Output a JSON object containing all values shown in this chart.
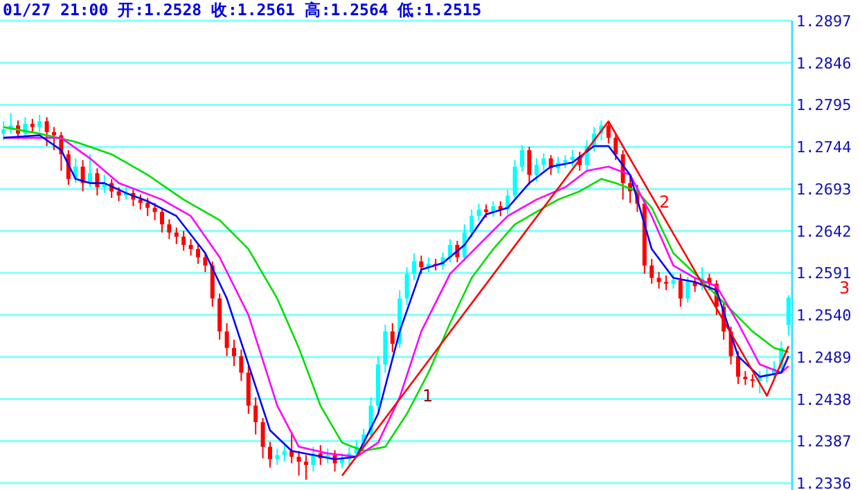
{
  "chart_data": {
    "type": "candlestick",
    "title": "01/27  21:00  开:1.2528  收:1.2561  高:1.2564  低:1.2515",
    "categories": [
      null,
      null,
      null,
      null,
      null,
      null,
      null,
      null,
      null,
      null,
      null,
      null,
      null,
      null,
      null,
      null,
      null,
      null,
      null,
      null,
      null,
      null,
      null,
      null,
      null,
      null,
      null,
      null,
      null,
      null,
      null,
      null,
      null,
      null,
      null,
      null,
      null,
      null,
      null,
      null,
      null,
      null,
      null,
      null,
      null,
      null,
      null,
      null,
      null,
      null,
      null,
      null,
      null,
      null,
      null,
      null,
      null,
      null,
      null,
      null,
      null,
      null,
      null,
      null,
      null,
      null,
      null,
      null,
      null,
      null,
      null,
      null,
      null,
      null,
      null,
      null,
      null,
      null,
      null,
      null,
      null,
      null,
      null,
      null,
      null,
      null,
      null,
      null,
      null,
      null,
      null,
      null,
      null,
      null,
      null,
      null,
      null,
      null,
      null,
      null,
      null,
      null,
      null,
      null,
      null,
      null,
      null,
      null,
      null,
      null
    ],
    "ohlc": [
      [
        1.276,
        1.2775,
        1.2752,
        1.2765
      ],
      [
        1.2765,
        1.2785,
        1.276,
        1.277
      ],
      [
        1.277,
        1.2776,
        1.2754,
        1.276
      ],
      [
        1.276,
        1.278,
        1.2755,
        1.2772
      ],
      [
        1.2772,
        1.2778,
        1.2762,
        1.2768
      ],
      [
        1.2768,
        1.2783,
        1.2762,
        1.2775
      ],
      [
        1.2775,
        1.278,
        1.2745,
        1.2762
      ],
      [
        1.2762,
        1.2768,
        1.274,
        1.2758
      ],
      [
        1.2758,
        1.2762,
        1.2715,
        1.2735
      ],
      [
        1.2735,
        1.274,
        1.2698,
        1.2705
      ],
      [
        1.2705,
        1.273,
        1.27,
        1.272
      ],
      [
        1.272,
        1.2728,
        1.269,
        1.27
      ],
      [
        1.27,
        1.2735,
        1.2695,
        1.2712
      ],
      [
        1.2712,
        1.2718,
        1.2685,
        1.2695
      ],
      [
        1.2695,
        1.271,
        1.2688,
        1.27
      ],
      [
        1.27,
        1.2705,
        1.2682,
        1.269
      ],
      [
        1.269,
        1.2695,
        1.2678,
        1.2685
      ],
      [
        1.2685,
        1.2695,
        1.268,
        1.2688
      ],
      [
        1.2688,
        1.2692,
        1.2672,
        1.268
      ],
      [
        1.268,
        1.2686,
        1.2668,
        1.2676
      ],
      [
        1.2676,
        1.2682,
        1.266,
        1.267
      ],
      [
        1.267,
        1.2676,
        1.2655,
        1.2665
      ],
      [
        1.2665,
        1.267,
        1.264,
        1.265
      ],
      [
        1.265,
        1.2656,
        1.2632,
        1.264
      ],
      [
        1.264,
        1.2646,
        1.2626,
        1.2635
      ],
      [
        1.2635,
        1.2642,
        1.2618,
        1.2625
      ],
      [
        1.2625,
        1.2632,
        1.2612,
        1.262
      ],
      [
        1.262,
        1.2626,
        1.2602,
        1.261
      ],
      [
        1.261,
        1.2616,
        1.2592,
        1.26
      ],
      [
        1.26,
        1.2605,
        1.255,
        1.256
      ],
      [
        1.256,
        1.2566,
        1.251,
        1.252
      ],
      [
        1.252,
        1.253,
        1.249,
        1.25
      ],
      [
        1.25,
        1.251,
        1.2478,
        1.249
      ],
      [
        1.249,
        1.2498,
        1.246,
        1.247
      ],
      [
        1.247,
        1.2478,
        1.242,
        1.243
      ],
      [
        1.243,
        1.244,
        1.2395,
        1.241
      ],
      [
        1.241,
        1.2415,
        1.2366,
        1.238
      ],
      [
        1.238,
        1.2386,
        1.2355,
        1.2365
      ],
      [
        1.2365,
        1.2378,
        1.2358,
        1.237
      ],
      [
        1.237,
        1.2382,
        1.2362,
        1.2375
      ],
      [
        1.2375,
        1.2398,
        1.236,
        1.2368
      ],
      [
        1.2368,
        1.2375,
        1.2345,
        1.2362
      ],
      [
        1.2362,
        1.237,
        1.234,
        1.2358
      ],
      [
        1.2358,
        1.238,
        1.235,
        1.2372
      ],
      [
        1.2372,
        1.2382,
        1.2358,
        1.2366
      ],
      [
        1.2366,
        1.2378,
        1.236,
        1.237
      ],
      [
        1.237,
        1.2376,
        1.235,
        1.236
      ],
      [
        1.236,
        1.2372,
        1.2354,
        1.2365
      ],
      [
        1.2365,
        1.238,
        1.2358,
        1.2372
      ],
      [
        1.2372,
        1.2388,
        1.2366,
        1.238
      ],
      [
        1.238,
        1.2402,
        1.2374,
        1.2395
      ],
      [
        1.2395,
        1.244,
        1.239,
        1.243
      ],
      [
        1.243,
        1.249,
        1.2425,
        1.248
      ],
      [
        1.248,
        1.2528,
        1.247,
        1.252
      ],
      [
        1.252,
        1.253,
        1.2495,
        1.2505
      ],
      [
        1.2505,
        1.257,
        1.25,
        1.256
      ],
      [
        1.256,
        1.2598,
        1.2552,
        1.259
      ],
      [
        1.259,
        1.2615,
        1.2582,
        1.2605
      ],
      [
        1.2605,
        1.2612,
        1.259,
        1.2598
      ],
      [
        1.2598,
        1.261,
        1.2592,
        1.2602
      ],
      [
        1.2602,
        1.2608,
        1.2594,
        1.26
      ],
      [
        1.26,
        1.2616,
        1.2595,
        1.261
      ],
      [
        1.261,
        1.2632,
        1.2604,
        1.2625
      ],
      [
        1.2625,
        1.263,
        1.2604,
        1.261
      ],
      [
        1.261,
        1.265,
        1.2605,
        1.264
      ],
      [
        1.264,
        1.2668,
        1.2634,
        1.266
      ],
      [
        1.266,
        1.2675,
        1.2654,
        1.2668
      ],
      [
        1.2668,
        1.2674,
        1.2658,
        1.2665
      ],
      [
        1.2665,
        1.2678,
        1.2659,
        1.2672
      ],
      [
        1.2672,
        1.2678,
        1.266,
        1.2668
      ],
      [
        1.2668,
        1.2692,
        1.2662,
        1.2685
      ],
      [
        1.2685,
        1.2728,
        1.268,
        1.272
      ],
      [
        1.272,
        1.2746,
        1.2714,
        1.274
      ],
      [
        1.274,
        1.2744,
        1.2698,
        1.271
      ],
      [
        1.271,
        1.273,
        1.2702,
        1.2722
      ],
      [
        1.2722,
        1.2736,
        1.2715,
        1.273
      ],
      [
        1.273,
        1.2734,
        1.271,
        1.2718
      ],
      [
        1.2718,
        1.2732,
        1.2712,
        1.2725
      ],
      [
        1.2725,
        1.2734,
        1.2718,
        1.2728
      ],
      [
        1.2728,
        1.274,
        1.272,
        1.2732
      ],
      [
        1.2732,
        1.2738,
        1.2715,
        1.2722
      ],
      [
        1.2722,
        1.2752,
        1.2716,
        1.2745
      ],
      [
        1.2745,
        1.2768,
        1.2738,
        1.276
      ],
      [
        1.276,
        1.2776,
        1.2752,
        1.277
      ],
      [
        1.277,
        1.2775,
        1.2748,
        1.2755
      ],
      [
        1.2755,
        1.276,
        1.2728,
        1.2735
      ],
      [
        1.2735,
        1.274,
        1.268,
        1.27
      ],
      [
        1.27,
        1.271,
        1.2676,
        1.269
      ],
      [
        1.269,
        1.2698,
        1.2665,
        1.2675
      ],
      [
        1.2675,
        1.268,
        1.259,
        1.26
      ],
      [
        1.26,
        1.2608,
        1.2578,
        1.2585
      ],
      [
        1.2585,
        1.2592,
        1.2572,
        1.258
      ],
      [
        1.258,
        1.2588,
        1.257,
        1.2578
      ],
      [
        1.2578,
        1.259,
        1.2572,
        1.2582
      ],
      [
        1.2582,
        1.259,
        1.255,
        1.256
      ],
      [
        1.256,
        1.2586,
        1.2555,
        1.258
      ],
      [
        1.258,
        1.2586,
        1.2568,
        1.2575
      ],
      [
        1.2575,
        1.2598,
        1.257,
        1.2585
      ],
      [
        1.2585,
        1.259,
        1.257,
        1.2578
      ],
      [
        1.2578,
        1.2582,
        1.254,
        1.255
      ],
      [
        1.255,
        1.2556,
        1.251,
        1.252
      ],
      [
        1.252,
        1.2526,
        1.248,
        1.249
      ],
      [
        1.249,
        1.2496,
        1.2456,
        1.2465
      ],
      [
        1.2465,
        1.2472,
        1.2455,
        1.2462
      ],
      [
        1.2462,
        1.2468,
        1.2452,
        1.246
      ],
      [
        1.246,
        1.2472,
        1.2445,
        1.2465
      ],
      [
        1.2465,
        1.2476,
        1.2458,
        1.2468
      ],
      [
        1.2468,
        1.2484,
        1.2462,
        1.2475
      ],
      [
        1.2475,
        1.2508,
        1.247,
        1.25
      ],
      [
        1.2528,
        1.2564,
        1.2515,
        1.2561
      ]
    ],
    "ylim": [
      1.2336,
      1.2897
    ],
    "yticks": [
      1.2336,
      1.2387,
      1.2438,
      1.2489,
      {
        "value": 1.254,
        "label": "1.2540"
      },
      1.2591,
      1.2642,
      1.2693,
      1.2744,
      1.2795,
      1.2846,
      1.2897
    ],
    "grid": "y",
    "tick_labels": "y",
    "series": [
      {
        "type": "line",
        "color": "#00dd00",
        "values": [
          1.2768,
          null,
          null,
          null,
          null,
          1.276,
          null,
          null,
          null,
          null,
          1.275,
          null,
          null,
          null,
          null,
          1.2735,
          null,
          null,
          null,
          null,
          1.271,
          null,
          null,
          null,
          null,
          1.268,
          null,
          null,
          null,
          null,
          1.2655,
          null,
          null,
          null,
          1.262,
          null,
          null,
          null,
          1.256,
          null,
          null,
          1.25,
          null,
          null,
          1.243,
          null,
          null,
          1.2385,
          null,
          null,
          1.2375,
          null,
          null,
          1.238,
          null,
          null,
          1.242,
          null,
          null,
          1.247,
          null,
          null,
          1.253,
          null,
          null,
          1.2585,
          null,
          null,
          1.262,
          null,
          null,
          1.265,
          null,
          null,
          1.2665,
          null,
          null,
          1.268,
          null,
          null,
          1.269,
          null,
          null,
          1.2705,
          null,
          1.27,
          null,
          null,
          1.269,
          null,
          1.267,
          null,
          null,
          1.2615,
          null,
          null,
          1.259,
          null,
          null,
          null,
          1.2555,
          null,
          null,
          null,
          1.252,
          null,
          null,
          1.25,
          null,
          1.2495
        ]
      },
      {
        "type": "line",
        "color": "#ff00ff",
        "values": [
          1.2755,
          null,
          null,
          null,
          null,
          null,
          null,
          null,
          1.2755,
          null,
          null,
          null,
          1.273,
          null,
          null,
          null,
          1.27,
          null,
          null,
          null,
          null,
          null,
          1.268,
          null,
          null,
          null,
          1.266,
          null,
          null,
          null,
          1.261,
          null,
          null,
          null,
          1.254,
          null,
          null,
          null,
          1.243,
          null,
          null,
          1.238,
          null,
          null,
          null,
          1.2372,
          null,
          null,
          null,
          1.2368,
          null,
          null,
          1.2385,
          null,
          null,
          1.244,
          null,
          null,
          1.252,
          null,
          null,
          null,
          1.259,
          null,
          null,
          null,
          1.2625,
          null,
          null,
          null,
          1.266,
          null,
          null,
          null,
          1.268,
          null,
          null,
          null,
          1.2695,
          null,
          null,
          1.2715,
          null,
          null,
          1.272,
          null,
          null,
          1.271,
          null,
          null,
          1.266,
          null,
          null,
          1.26,
          null,
          null,
          1.2585,
          null,
          null,
          1.2575,
          null,
          null,
          1.253,
          null,
          null,
          1.248,
          null,
          null,
          1.247,
          1.2478
        ]
      },
      {
        "type": "line",
        "color": "#0000ff",
        "values": [
          1.2755,
          null,
          null,
          null,
          null,
          1.2758,
          null,
          null,
          1.274,
          null,
          1.2705,
          null,
          1.27,
          null,
          1.27,
          null,
          null,
          1.2688,
          null,
          null,
          1.2678,
          null,
          null,
          null,
          1.266,
          null,
          null,
          null,
          1.2615,
          null,
          null,
          1.256,
          null,
          null,
          1.248,
          null,
          null,
          1.24,
          null,
          null,
          1.2375,
          null,
          null,
          1.237,
          null,
          null,
          1.2365,
          null,
          null,
          1.2368,
          null,
          null,
          1.242,
          null,
          null,
          1.252,
          null,
          null,
          1.2595,
          null,
          null,
          1.2603,
          null,
          null,
          1.2625,
          null,
          null,
          1.2662,
          null,
          null,
          1.267,
          null,
          null,
          1.27,
          null,
          null,
          1.272,
          null,
          null,
          1.2725,
          null,
          null,
          1.2745,
          null,
          1.2745,
          null,
          null,
          1.271,
          null,
          null,
          1.262,
          null,
          null,
          1.2585,
          null,
          null,
          1.258,
          null,
          null,
          1.257,
          null,
          null,
          1.249,
          null,
          null,
          1.2465,
          null,
          null,
          1.247,
          1.249
        ]
      },
      {
        "type": "line",
        "color": "#ff0000",
        "values": [
          null,
          null,
          null,
          null,
          null,
          null,
          null,
          null,
          null,
          null,
          null,
          null,
          null,
          null,
          null,
          null,
          null,
          null,
          null,
          null,
          null,
          null,
          null,
          null,
          null,
          null,
          null,
          null,
          null,
          null,
          null,
          null,
          null,
          null,
          null,
          null,
          null,
          null,
          null,
          null,
          null,
          null,
          null,
          null,
          null,
          null,
          null,
          1.2345,
          null,
          null,
          null,
          null,
          null,
          null,
          null,
          null,
          null,
          null,
          null,
          null,
          null,
          null,
          null,
          null,
          null,
          null,
          null,
          null,
          null,
          null,
          null,
          null,
          null,
          null,
          null,
          null,
          null,
          null,
          null,
          null,
          null,
          null,
          null,
          null,
          1.2775,
          null,
          null,
          null,
          null,
          null,
          null,
          null,
          null,
          null,
          null,
          null,
          null,
          null,
          null,
          null,
          null,
          null,
          null,
          null,
          null,
          null,
          1.2442,
          null,
          null,
          1.2502
        ]
      }
    ],
    "annotations": [
      "1",
      "2",
      "3"
    ]
  }
}
